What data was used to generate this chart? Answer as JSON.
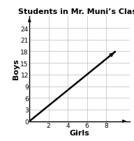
{
  "title": "Students in Mr. Muni’s Class",
  "xlabel": "Girls",
  "ylabel": "Boys",
  "xlim": [
    0,
    10.5
  ],
  "ylim": [
    0,
    27
  ],
  "xticks": [
    2,
    4,
    6,
    8
  ],
  "yticks": [
    0,
    3,
    6,
    9,
    12,
    15,
    18,
    21,
    24
  ],
  "line_x": [
    0,
    9.0
  ],
  "line_y": [
    0,
    18.0
  ],
  "line_color": "#000000",
  "line_width": 1.8,
  "background_color": "#ffffff",
  "grid_color": "#bbbbbb",
  "grid_lw": 0.5,
  "title_fontsize": 8,
  "label_fontsize": 8,
  "tick_fontsize": 6.5,
  "arrow_mutation": 6
}
